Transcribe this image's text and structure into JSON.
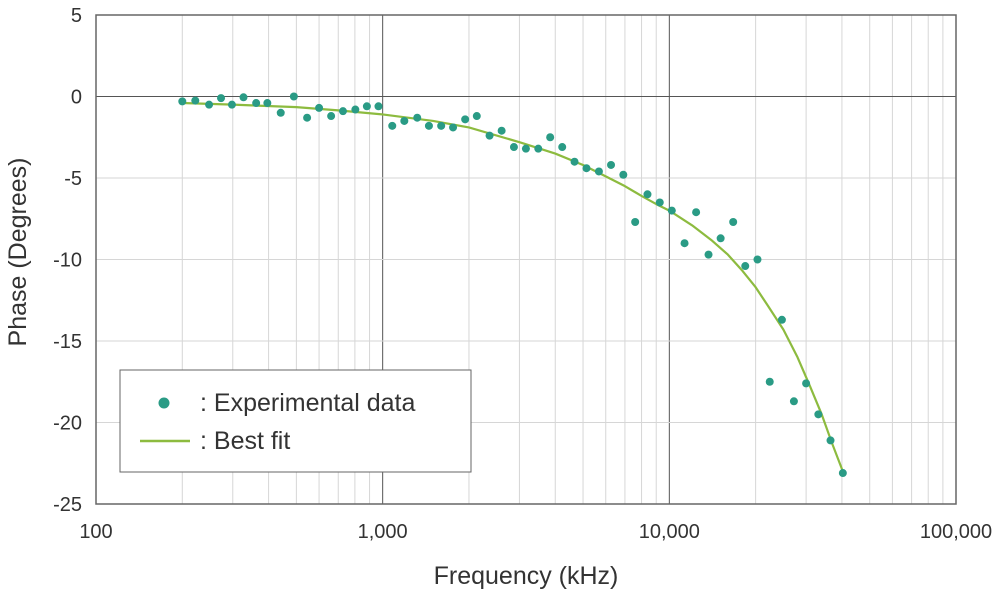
{
  "chart_data": {
    "type": "scatter",
    "xlabel": "Frequency (kHz)",
    "ylabel": "Phase (Degrees)",
    "xscale": "log",
    "xlim": [
      100,
      100000
    ],
    "ylim": [
      -25,
      5
    ],
    "x_ticks": [
      100,
      1000,
      10000,
      100000
    ],
    "x_tick_labels": [
      "100",
      "1,000",
      "10,000",
      "100,000"
    ],
    "y_ticks": [
      5,
      0,
      -5,
      -10,
      -15,
      -20,
      -25
    ],
    "y_tick_labels": [
      "5",
      "0",
      "-5",
      "-10",
      "-15",
      "-20",
      "-25"
    ],
    "grid": true,
    "legend": {
      "position": "bottom-left",
      "entries": [
        {
          "label": ": Experimental data",
          "kind": "marker",
          "color": "#2a9b85"
        },
        {
          "label": ": Best fit",
          "kind": "line",
          "color": "#8dbb3f"
        }
      ]
    },
    "series": [
      {
        "name": "Experimental data",
        "kind": "scatter",
        "color": "#2a9b85",
        "points": [
          [
            200,
            -0.3
          ],
          [
            222,
            -0.25
          ],
          [
            248,
            -0.5
          ],
          [
            273,
            -0.1
          ],
          [
            298,
            -0.5
          ],
          [
            327,
            -0.05
          ],
          [
            362,
            -0.4
          ],
          [
            396,
            -0.4
          ],
          [
            441,
            -1.0
          ],
          [
            490,
            0.0
          ],
          [
            545,
            -1.3
          ],
          [
            600,
            -0.7
          ],
          [
            661,
            -1.2
          ],
          [
            727,
            -0.9
          ],
          [
            803,
            -0.8
          ],
          [
            881,
            -0.6
          ],
          [
            967,
            -0.6
          ],
          [
            1080,
            -1.8
          ],
          [
            1190,
            -1.5
          ],
          [
            1320,
            -1.3
          ],
          [
            1450,
            -1.8
          ],
          [
            1600,
            -1.8
          ],
          [
            1760,
            -1.9
          ],
          [
            1940,
            -1.4
          ],
          [
            2130,
            -1.2
          ],
          [
            2360,
            -2.4
          ],
          [
            2600,
            -2.1
          ],
          [
            2870,
            -3.1
          ],
          [
            3160,
            -3.2
          ],
          [
            3490,
            -3.2
          ],
          [
            3840,
            -2.5
          ],
          [
            4230,
            -3.1
          ],
          [
            4670,
            -4.0
          ],
          [
            5140,
            -4.4
          ],
          [
            5680,
            -4.6
          ],
          [
            6260,
            -4.2
          ],
          [
            6910,
            -4.8
          ],
          [
            7600,
            -7.7
          ],
          [
            8390,
            -6.0
          ],
          [
            9260,
            -6.5
          ],
          [
            10200,
            -7.0
          ],
          [
            11300,
            -9.0
          ],
          [
            12400,
            -7.1
          ],
          [
            13700,
            -9.7
          ],
          [
            15100,
            -8.7
          ],
          [
            16700,
            -7.7
          ],
          [
            18400,
            -10.4
          ],
          [
            20300,
            -10.0
          ],
          [
            22400,
            -17.5
          ],
          [
            24700,
            -13.7
          ],
          [
            27200,
            -18.7
          ],
          [
            30000,
            -17.6
          ],
          [
            33100,
            -19.5
          ],
          [
            36500,
            -21.1
          ],
          [
            40300,
            -23.1
          ]
        ]
      },
      {
        "name": "Best fit",
        "kind": "line",
        "color": "#8dbb3f",
        "points": [
          [
            200,
            -0.4
          ],
          [
            300,
            -0.5
          ],
          [
            500,
            -0.65
          ],
          [
            700,
            -0.85
          ],
          [
            1000,
            -1.1
          ],
          [
            1500,
            -1.5
          ],
          [
            2000,
            -1.9
          ],
          [
            3000,
            -2.8
          ],
          [
            4000,
            -3.5
          ],
          [
            5000,
            -4.2
          ],
          [
            6000,
            -4.9
          ],
          [
            7000,
            -5.5
          ],
          [
            8000,
            -6.1
          ],
          [
            9000,
            -6.6
          ],
          [
            10000,
            -7.0
          ],
          [
            12000,
            -7.9
          ],
          [
            14000,
            -8.8
          ],
          [
            16000,
            -9.7
          ],
          [
            18000,
            -10.7
          ],
          [
            20000,
            -11.7
          ],
          [
            22000,
            -12.8
          ],
          [
            25000,
            -14.3
          ],
          [
            28000,
            -16.0
          ],
          [
            31000,
            -17.8
          ],
          [
            34000,
            -19.5
          ],
          [
            37000,
            -21.3
          ],
          [
            40300,
            -23.0
          ]
        ]
      }
    ]
  }
}
